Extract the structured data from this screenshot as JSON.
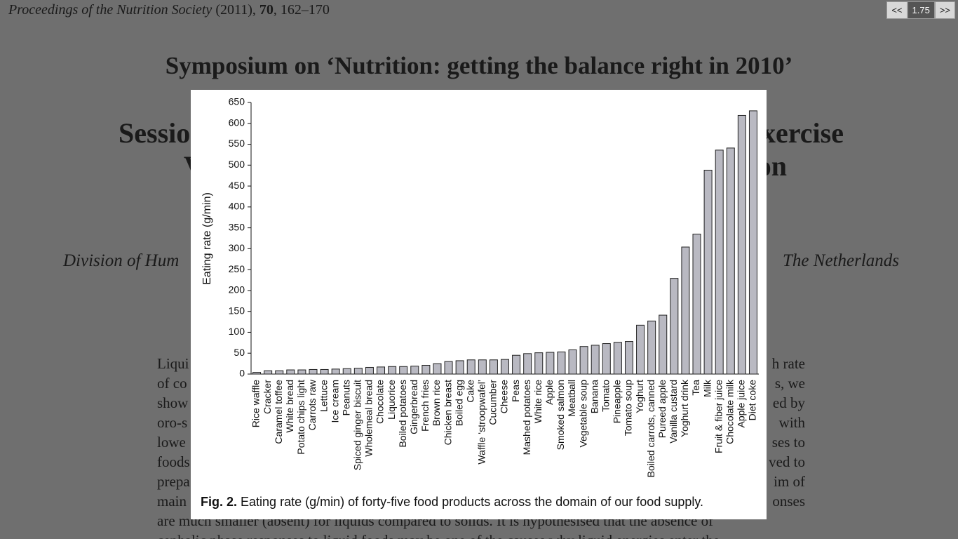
{
  "viewer": {
    "prev": "<<",
    "zoom": "1.75",
    "next": ">>"
  },
  "header": {
    "journal": "Proceedings of the Nutrition Society",
    "year": "(2011),",
    "volume": "70",
    "pages": ", 162–170"
  },
  "document": {
    "title": "Symposium on ‘Nutrition: getting the balance right in 2010’",
    "session_left": "Sessio",
    "session_right": "xercise",
    "line2_left": "V",
    "line2_right": "on",
    "affiliation_left": "Division of Hum",
    "affiliation_right": "The Netherlands",
    "body_left": [
      "Liqui",
      "of co",
      "show",
      "oro-s",
      "lowe",
      "foods",
      "prepa",
      "main"
    ],
    "body_right": [
      "h rate",
      "s, we",
      "ed by",
      "with",
      "ses to",
      "ved to",
      "im of",
      "onses"
    ],
    "body_full": [
      "are much smaller (absent) for liquids compared to solids. It is hypothesised that the absence of",
      "cephalic phase responses to liquid foods may be one of the causes why liquid energies enter the"
    ]
  },
  "chart_data": {
    "type": "bar",
    "y_label": "Eating rate (g/min)",
    "caption_label": "Fig. 2.",
    "caption_text": "Eating rate (g/min) of forty-five food products across the domain of our food supply.",
    "categories": [
      "Rice waffle",
      "Cracker",
      "Caramel toffee",
      "White bread",
      "Potato chips light",
      "Carrots raw",
      "Lettuce",
      "Ice cream",
      "Peanuts",
      "Spiced ginger biscuit",
      "Wholemeal bread",
      "Chocolate",
      "Liquorice",
      "Boiled potatoes",
      "Gingerbread",
      "French fries",
      "Brown rice",
      "Chicken breast",
      "Boiled egg",
      "Cake",
      "Waffle ‘stroopwafel’",
      "Cucumber",
      "Cheese",
      "Peas",
      "Mashed potatoes",
      "White rice",
      "Apple",
      "Smoked salmon",
      "Meatball",
      "Vegetable soup",
      "Banana",
      "Tomato",
      "Pineapple",
      "Tomato soup",
      "Yoghurt",
      "Boiled carrots, canned",
      "Pureed apple",
      "Vanilla custard",
      "Yoghurt drink",
      "Tea",
      "Milk",
      "Fruit & fiber juice",
      "Chocolate milk",
      "Apple juice",
      "Diet coke"
    ],
    "values": [
      4,
      8,
      8,
      10,
      10,
      11,
      11,
      12,
      13,
      14,
      16,
      17,
      18,
      18,
      19,
      21,
      25,
      30,
      32,
      34,
      34,
      34,
      35,
      45,
      49,
      51,
      52,
      53,
      58,
      66,
      69,
      73,
      76,
      78,
      117,
      127,
      141,
      229,
      304,
      335,
      488,
      536,
      541,
      619,
      630
    ],
    "color": "#b9b9c2",
    "ylim": [
      0,
      650
    ],
    "yticks": [
      0,
      50,
      100,
      150,
      200,
      250,
      300,
      350,
      400,
      450,
      500,
      550,
      600,
      650
    ]
  }
}
